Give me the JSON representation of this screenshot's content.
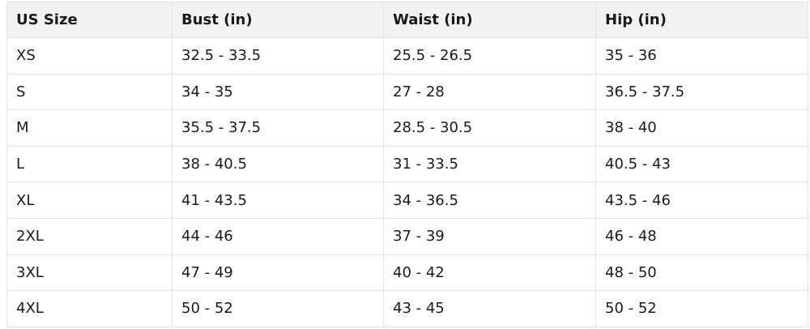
{
  "table": {
    "header": [
      "US Size",
      "Bust (in)",
      "Waist (in)",
      "Hip (in)"
    ],
    "rows": [
      [
        "XS",
        "32.5 - 33.5",
        "25.5 - 26.5",
        "35 - 36"
      ],
      [
        "S",
        "34 - 35",
        "27 - 28",
        "36.5 - 37.5"
      ],
      [
        "M",
        "35.5 - 37.5",
        "28.5 - 30.5",
        "38 - 40"
      ],
      [
        "L",
        "38 - 40.5",
        "31 - 33.5",
        "40.5 - 43"
      ],
      [
        "XL",
        "41 - 43.5",
        "34 - 36.5",
        "43.5 - 46"
      ],
      [
        "2XL",
        "44 - 46",
        "37 - 39",
        "46 - 48"
      ],
      [
        "3XL",
        "47 - 49",
        "40 - 42",
        "48 - 50"
      ],
      [
        "4XL",
        "50 - 52",
        "43 - 45",
        "50 - 52"
      ]
    ]
  }
}
